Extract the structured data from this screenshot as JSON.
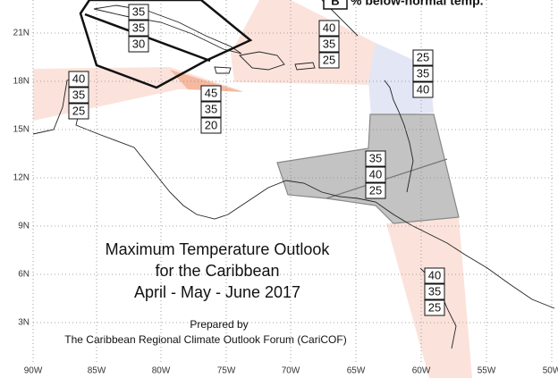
{
  "legend": {
    "letter": "B",
    "text": "% below-normal temp."
  },
  "latitude_labels": [
    "21N",
    "18N",
    "15N",
    "12N",
    "9N",
    "6N",
    "3N"
  ],
  "longitude_labels": [
    "90W",
    "85W",
    "80W",
    "75W",
    "70W",
    "65W",
    "60W",
    "55W",
    "50W"
  ],
  "boxes": [
    {
      "values": [
        35,
        35,
        30
      ]
    },
    {
      "values": [
        40,
        35,
        25
      ]
    },
    {
      "values": [
        25,
        35,
        40
      ]
    },
    {
      "values": [
        40,
        35,
        25
      ]
    },
    {
      "values": [
        45,
        35,
        20
      ]
    },
    {
      "values": [
        35,
        40,
        25
      ]
    },
    {
      "values": [
        40,
        35,
        25
      ]
    }
  ],
  "title": {
    "line1": "Maximum Temperature Outlook",
    "line2": "for the Caribbean",
    "line3": "April - May - June 2017"
  },
  "credit": {
    "line1": "Prepared by",
    "line2": "The Caribbean Regional Climate Outlook Forum (CariCOF)"
  }
}
